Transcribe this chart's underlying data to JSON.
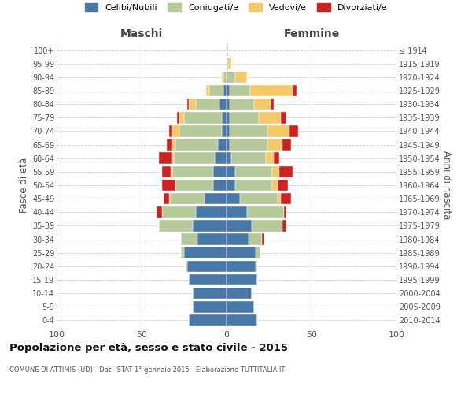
{
  "age_groups": [
    "0-4",
    "5-9",
    "10-14",
    "15-19",
    "20-24",
    "25-29",
    "30-34",
    "35-39",
    "40-44",
    "45-49",
    "50-54",
    "55-59",
    "60-64",
    "65-69",
    "70-74",
    "75-79",
    "80-84",
    "85-89",
    "90-94",
    "95-99",
    "100+"
  ],
  "birth_years": [
    "2010-2014",
    "2005-2009",
    "2000-2004",
    "1995-1999",
    "1990-1994",
    "1985-1989",
    "1980-1984",
    "1975-1979",
    "1970-1974",
    "1965-1969",
    "1960-1964",
    "1955-1959",
    "1950-1954",
    "1945-1949",
    "1940-1944",
    "1935-1939",
    "1930-1934",
    "1925-1929",
    "1920-1924",
    "1915-1919",
    "≤ 1914"
  ],
  "males": {
    "celibi": [
      22,
      20,
      20,
      22,
      23,
      25,
      17,
      20,
      18,
      13,
      8,
      8,
      7,
      5,
      3,
      3,
      4,
      2,
      0,
      0,
      0
    ],
    "coniugati": [
      0,
      0,
      0,
      0,
      1,
      2,
      10,
      20,
      20,
      20,
      22,
      24,
      24,
      25,
      25,
      22,
      14,
      8,
      2,
      0,
      0
    ],
    "vedovi": [
      0,
      0,
      0,
      0,
      0,
      0,
      0,
      0,
      0,
      1,
      0,
      1,
      1,
      2,
      4,
      3,
      4,
      2,
      1,
      0,
      0
    ],
    "divorziati": [
      0,
      0,
      0,
      0,
      0,
      0,
      0,
      0,
      3,
      3,
      8,
      5,
      8,
      3,
      2,
      1,
      1,
      0,
      0,
      0,
      0
    ]
  },
  "females": {
    "nubili": [
      18,
      16,
      15,
      18,
      17,
      17,
      13,
      15,
      12,
      8,
      5,
      5,
      3,
      2,
      2,
      2,
      2,
      2,
      0,
      0,
      0
    ],
    "coniugate": [
      0,
      0,
      0,
      0,
      1,
      3,
      8,
      18,
      22,
      22,
      22,
      22,
      20,
      22,
      22,
      17,
      14,
      12,
      5,
      1,
      0
    ],
    "vedove": [
      0,
      0,
      0,
      0,
      0,
      0,
      0,
      0,
      0,
      2,
      3,
      4,
      5,
      9,
      13,
      13,
      10,
      25,
      7,
      2,
      1
    ],
    "divorziate": [
      0,
      0,
      0,
      0,
      0,
      0,
      1,
      2,
      1,
      6,
      6,
      8,
      3,
      5,
      5,
      3,
      2,
      2,
      0,
      0,
      0
    ]
  },
  "colors": {
    "celibi": "#4878a8",
    "coniugati": "#b5c99a",
    "vedovi": "#f5c96a",
    "divorziati": "#cc2222"
  },
  "xlim": 100,
  "title": "Popolazione per età, sesso e stato civile - 2015",
  "subtitle": "COMUNE DI ATTIMIS (UD) - Dati ISTAT 1° gennaio 2015 - Elaborazione TUTTITALIA.IT",
  "ylabel_left": "Fasce di età",
  "ylabel_right": "Anni di nascita",
  "xlabel_left": "Maschi",
  "xlabel_right": "Femmine",
  "legend_labels": [
    "Celibi/Nubili",
    "Coniugati/e",
    "Vedovi/e",
    "Divorziati/e"
  ],
  "legend_colors": [
    "#4878a8",
    "#b5c99a",
    "#f5c96a",
    "#cc2222"
  ]
}
